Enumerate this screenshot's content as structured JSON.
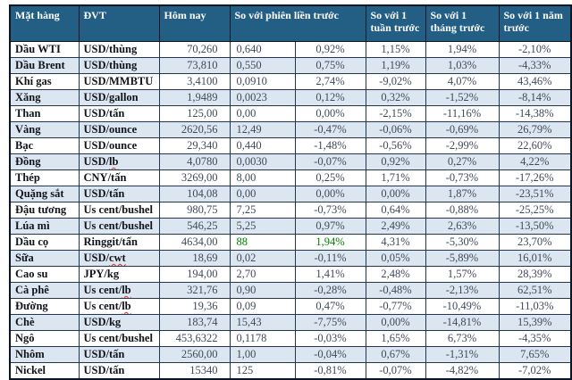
{
  "colors": {
    "header_bg": "#235E84",
    "header_text": "#FFFFFF",
    "stripe": "#DCE6F1",
    "positive_green": "#008000",
    "spellcheck_red": "#D93025",
    "number_text": "#3F4A5C",
    "label_text": "#10141C"
  },
  "table": {
    "headers": [
      "Mặt hàng",
      "ĐVT",
      "Hôm nay",
      "So với phiên liền trước",
      "So với 1 tuần trước",
      "So với 1 tháng trước",
      "So với 1 năm trước"
    ],
    "rows": [
      {
        "name": "Dầu WTI",
        "unit": "USD/thùng",
        "today": "70,260",
        "change": "0,640",
        "vs_session": "0,92%",
        "vs_week": "1,15%",
        "vs_month": "1,94%",
        "vs_year": "-2,10%"
      },
      {
        "name": "Dầu Brent",
        "unit": "USD/thùng",
        "today": "73,810",
        "change": "0,550",
        "vs_session": "0,75%",
        "vs_week": "1,19%",
        "vs_month": "1,03%",
        "vs_year": "-4,33%"
      },
      {
        "name": "Khí gas",
        "unit": "USD/MMBTU",
        "today": "3,4100",
        "change": "0,0910",
        "vs_session": "2,74%",
        "vs_week": "-9,02%",
        "vs_month": "4,07%",
        "vs_year": "43,46%"
      },
      {
        "name": "Xăng",
        "unit": "USD/gallon",
        "today": "1,9489",
        "change": "0,0023",
        "vs_session": "0,12%",
        "vs_week": "0,32%",
        "vs_month": "-1,52%",
        "vs_year": "-8,14%"
      },
      {
        "name": "Than",
        "unit": "USD/tấn",
        "today": "125,00",
        "change": "0,00",
        "vs_session": "0,00%",
        "vs_week": "-2,15%",
        "vs_month": "-11,16%",
        "vs_year": "-14,38%"
      },
      {
        "name": "Vàng",
        "unit": "USD/ounce",
        "today": "2620,56",
        "change": "12,49",
        "vs_session": "-0,47%",
        "vs_week": "-0,06%",
        "vs_month": "-0,69%",
        "vs_year": "26,79%"
      },
      {
        "name": "Bạc",
        "unit": "USD/ounce",
        "today": "29,340",
        "change": "0,440",
        "vs_session": "-1,48%",
        "vs_week": "-0,56%",
        "vs_month": "-2,99%",
        "vs_year": "22,60%"
      },
      {
        "name": "Đồng",
        "unit": "USD/lb",
        "unit_misspelled": "lb",
        "today": "4,0780",
        "change": "0,0030",
        "vs_session": "-0,07%",
        "vs_week": "0,92%",
        "vs_month": "0,27%",
        "vs_year": "4,22%"
      },
      {
        "name": "Thép",
        "unit": "CNY/tấn",
        "today": "3269,00",
        "change": "8,00",
        "vs_session": "0,25%",
        "vs_week": "1,71%",
        "vs_month": "-0,73%",
        "vs_year": "-17,26%"
      },
      {
        "name": "Quặng sắt",
        "unit": "USD/tấn",
        "today": "104,08",
        "change": "0,00",
        "vs_session": "0,00%",
        "vs_week": "0,00%",
        "vs_month": "1,87%",
        "vs_year": "-23,51%"
      },
      {
        "name": "Đậu tương",
        "unit": "Us cent/bushel",
        "today": "980,75",
        "change": "7,25",
        "vs_session": "-0,73%",
        "vs_week": "0,64%",
        "vs_month": "-0,88%",
        "vs_year": "-25,25%"
      },
      {
        "name": "Lúa mì",
        "unit": "Us cent/bushel",
        "today": "546,25",
        "change": "5,25",
        "vs_session": "0,97%",
        "vs_week": "2,49%",
        "vs_month": "2,63%",
        "vs_year": "-13,50%"
      },
      {
        "name": "Dầu cọ",
        "unit": "Ringgit/tấn",
        "today": "4634,00",
        "change": "88",
        "change_green": true,
        "vs_session": "1,94%",
        "vs_session_green": true,
        "vs_week": "4,31%",
        "vs_month": "-5,30%",
        "vs_year": "23,70%"
      },
      {
        "name": "Sữa",
        "unit": "USD/cwt",
        "unit_misspelled": "cwt",
        "today": "18,69",
        "change": "0,02",
        "vs_session": "-0,11%",
        "vs_week": "0,05%",
        "vs_month": "-5,89%",
        "vs_year": "16,01%"
      },
      {
        "name": "Cao su",
        "unit": "JPY/kg",
        "today": "194,00",
        "change": "2,70",
        "vs_session": "1,41%",
        "vs_week": "2,48%",
        "vs_month": "1,57%",
        "vs_year": "28,39%"
      },
      {
        "name": "Cà phê",
        "unit": "Us cent/lb",
        "unit_misspelled": "lb",
        "today": "321,76",
        "change": "0,90",
        "vs_session": "-0,28%",
        "vs_week": "-0,48%",
        "vs_month": "-2,13%",
        "vs_year": "62,51%"
      },
      {
        "name": "Đường",
        "unit": "Us cent/lb",
        "unit_misspelled": "lb",
        "today": "19,36",
        "change": "0,09",
        "vs_session": "0,47%",
        "vs_week": "-0,77%",
        "vs_month": "-10,49%",
        "vs_year": "-11,03%"
      },
      {
        "name": "Chè",
        "unit": "USD/kg",
        "today": "183,74",
        "change": "15,43",
        "vs_session": "-7,75%",
        "vs_week": "0,00%",
        "vs_month": "-14,81%",
        "vs_year": "15,39%"
      },
      {
        "name": "Ngô",
        "unit": "Us cent/bushel",
        "today": "453,6322",
        "change": "0,1178",
        "vs_session": "-0,03%",
        "vs_week": "1,65%",
        "vs_month": "6,73%",
        "vs_year": "-4,35%"
      },
      {
        "name": "Nhôm",
        "unit": "USD/tấn",
        "today": "2560,00",
        "change": "1,00",
        "vs_session": "-0,04%",
        "vs_week": "0,67%",
        "vs_month": "-1,31%",
        "vs_year": "7,65%"
      },
      {
        "name": "Nickel",
        "unit": "USD/tấn",
        "today": "15340",
        "change": "125",
        "vs_session": "-0,81%",
        "vs_week": "-0,07%",
        "vs_month": "-4,82%",
        "vs_year": "-7,02%"
      }
    ]
  }
}
